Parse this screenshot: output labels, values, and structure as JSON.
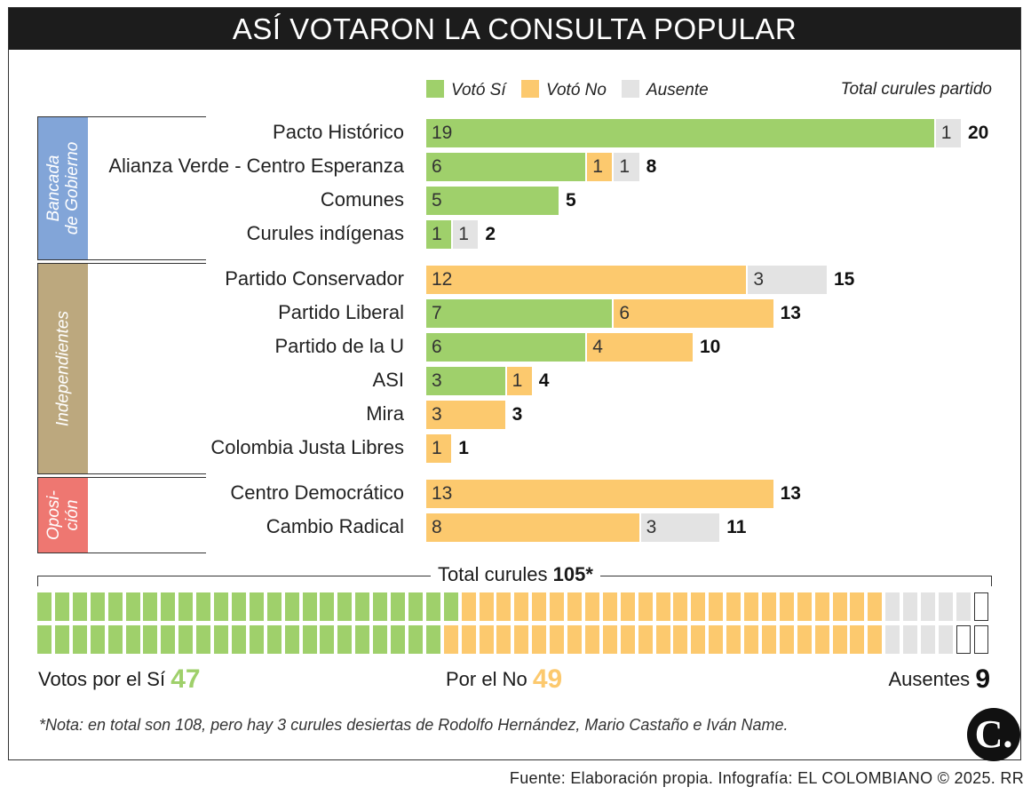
{
  "title": "ASÍ VOTARON LA CONSULTA POPULAR",
  "legend": {
    "yes": "Votó Sí",
    "no": "Votó No",
    "absent": "Ausente",
    "total_label": "Total curules partido"
  },
  "colors": {
    "yes": "#9fd06b",
    "no": "#fcc96e",
    "absent": "#e3e3e3",
    "gobierno": "#82a5d8",
    "independientes": "#bca87e",
    "oposicion": "#ee7771"
  },
  "chart_data": {
    "type": "bar",
    "stacked": true,
    "orientation": "horizontal",
    "title": "ASÍ VOTARON LA CONSULTA POPULAR",
    "series_names": [
      "Votó Sí",
      "Votó No",
      "Ausente"
    ],
    "groups": [
      {
        "name": "Bancada de Gobierno",
        "label_lines": [
          "Bancada",
          "de Gobierno"
        ],
        "color_key": "gobierno",
        "parties": [
          {
            "name": "Pacto Histórico",
            "yes": 19,
            "no": 0,
            "absent": 1,
            "total": 20
          },
          {
            "name": "Alianza Verde - Centro Esperanza",
            "yes": 6,
            "no": 1,
            "absent": 1,
            "total": 8
          },
          {
            "name": "Comunes",
            "yes": 5,
            "no": 0,
            "absent": 0,
            "total": 5
          },
          {
            "name": "Curules indígenas",
            "yes": 1,
            "no": 0,
            "absent": 1,
            "total": 2
          }
        ]
      },
      {
        "name": "Independientes",
        "label_lines": [
          "Independientes"
        ],
        "color_key": "independientes",
        "parties": [
          {
            "name": "Partido Conservador",
            "yes": 0,
            "no": 12,
            "absent": 3,
            "total": 15
          },
          {
            "name": "Partido Liberal",
            "yes": 7,
            "no": 6,
            "absent": 0,
            "total": 13
          },
          {
            "name": "Partido de la U",
            "yes": 6,
            "no": 4,
            "absent": 0,
            "total": 10
          },
          {
            "name": "ASI",
            "yes": 3,
            "no": 1,
            "absent": 0,
            "total": 4
          },
          {
            "name": "Mira",
            "yes": 0,
            "no": 3,
            "absent": 0,
            "total": 3
          },
          {
            "name": "Colombia Justa Libres",
            "yes": 0,
            "no": 1,
            "absent": 0,
            "total": 1
          }
        ]
      },
      {
        "name": "Oposición",
        "label_lines": [
          "Oposi-",
          "ción"
        ],
        "color_key": "oposicion",
        "parties": [
          {
            "name": "Centro Democrático",
            "yes": 0,
            "no": 13,
            "absent": 0,
            "total": 13
          },
          {
            "name": "Cambio Radical",
            "yes": 0,
            "no": 8,
            "absent": 3,
            "total": 11
          }
        ]
      }
    ],
    "summary": {
      "title": "Total curules",
      "total": "105*",
      "yes_label": "Votos por el Sí",
      "yes": 47,
      "no_label": "Por el No",
      "no": 49,
      "absent_label": "Ausentes",
      "absent": 9,
      "vacant": 3
    }
  },
  "note": "*Nota: en total son 108, pero hay 3 curules desiertas de Rodolfo Hernández, Mario Castaño e Iván Name.",
  "logo_text": "C.",
  "source": "Fuente: Elaboración propia. Infografía: EL COLOMBIANO © 2025. RR"
}
